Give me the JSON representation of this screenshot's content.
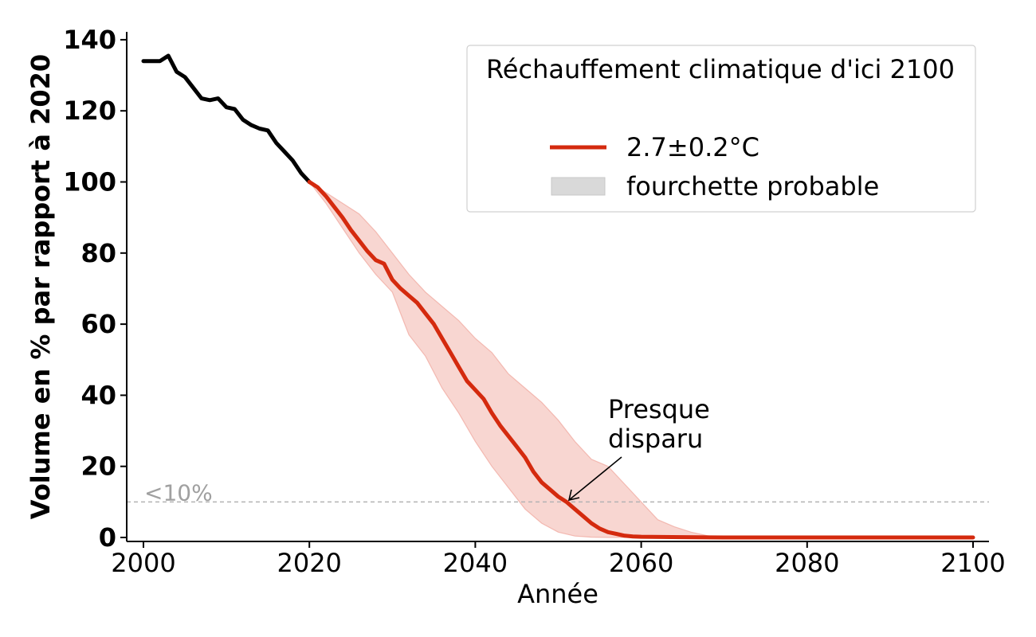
{
  "chart_data": {
    "type": "line",
    "xlabel": "Année",
    "ylabel": "Volume en % par rapport à 2020",
    "xlim": [
      1998,
      2102
    ],
    "ylim": [
      0,
      142
    ],
    "x_ticks": [
      2000,
      2020,
      2040,
      2060,
      2080,
      2100
    ],
    "y_ticks": [
      0,
      20,
      40,
      60,
      80,
      100,
      120,
      140
    ],
    "grid": false,
    "legend": {
      "title": "Réchauffement climatique d'ici 2100",
      "placement": "top-right",
      "entries": [
        {
          "label": "2.7±0.2°C",
          "kind": "line",
          "color": "#d42a0e"
        },
        {
          "label": "fourchette probable",
          "kind": "patch",
          "color": "#d9d9d9"
        }
      ]
    },
    "series": [
      {
        "name": "",
        "color": "#000000",
        "x": [
          2000,
          2001,
          2002,
          2003,
          2004,
          2005,
          2006,
          2007,
          2008,
          2009,
          2010,
          2011,
          2012,
          2013,
          2014,
          2015,
          2016,
          2017,
          2018,
          2019,
          2020
        ],
        "y": [
          134,
          134,
          134,
          135.5,
          131,
          129.5,
          126.5,
          123.5,
          123,
          123.5,
          121,
          120.5,
          117.5,
          116,
          115,
          114.5,
          111,
          108.5,
          106,
          102.5,
          100
        ]
      },
      {
        "name": "2.7±0.2°C",
        "color": "#d42a0e",
        "x": [
          2020,
          2021,
          2022,
          2023,
          2024,
          2025,
          2026,
          2027,
          2028,
          2029,
          2030,
          2031,
          2032,
          2033,
          2034,
          2035,
          2036,
          2037,
          2038,
          2039,
          2040,
          2041,
          2042,
          2043,
          2044,
          2045,
          2046,
          2047,
          2048,
          2049,
          2050,
          2051,
          2052,
          2053,
          2054,
          2055,
          2056,
          2057,
          2058,
          2059,
          2060,
          2065,
          2070,
          2080,
          2090,
          2100
        ],
        "y": [
          100,
          98.5,
          96,
          93,
          90,
          86.5,
          83.5,
          80.5,
          78,
          77,
          72.5,
          70,
          68,
          66,
          63,
          60,
          56,
          52,
          48,
          44,
          41.5,
          39,
          35,
          31.5,
          28.5,
          25.5,
          22.5,
          18.5,
          15.5,
          13.5,
          11.5,
          10,
          8,
          6,
          4,
          2.5,
          1.5,
          1,
          0.5,
          0.3,
          0.2,
          0.1,
          0,
          0,
          0,
          0
        ]
      }
    ],
    "band": {
      "label": "fourchette probable",
      "color": "#f0a49a",
      "x": [
        2020,
        2022,
        2024,
        2026,
        2028,
        2030,
        2032,
        2034,
        2036,
        2038,
        2040,
        2042,
        2044,
        2046,
        2048,
        2050,
        2052,
        2054,
        2056,
        2058,
        2060,
        2062,
        2064,
        2066,
        2068,
        2070,
        2080,
        2100
      ],
      "upper": [
        100,
        97,
        94,
        91,
        86,
        80,
        74,
        69,
        65,
        61,
        56,
        52,
        46,
        42,
        38,
        33,
        27,
        22,
        20,
        15,
        10,
        5,
        3,
        1.5,
        0.5,
        0,
        0,
        0
      ],
      "lower": [
        100,
        94,
        87,
        80,
        74,
        69,
        57,
        51,
        42,
        35,
        27,
        20,
        14,
        8,
        4,
        1.5,
        0.4,
        0.1,
        0,
        0,
        0,
        0,
        0,
        0,
        0,
        0,
        0,
        0
      ]
    },
    "reference_line": {
      "y": 10,
      "label": "<10%"
    },
    "annotation": {
      "text_lines": [
        "Presque",
        "disparu"
      ],
      "point": {
        "x": 2051,
        "y": 10
      }
    }
  }
}
